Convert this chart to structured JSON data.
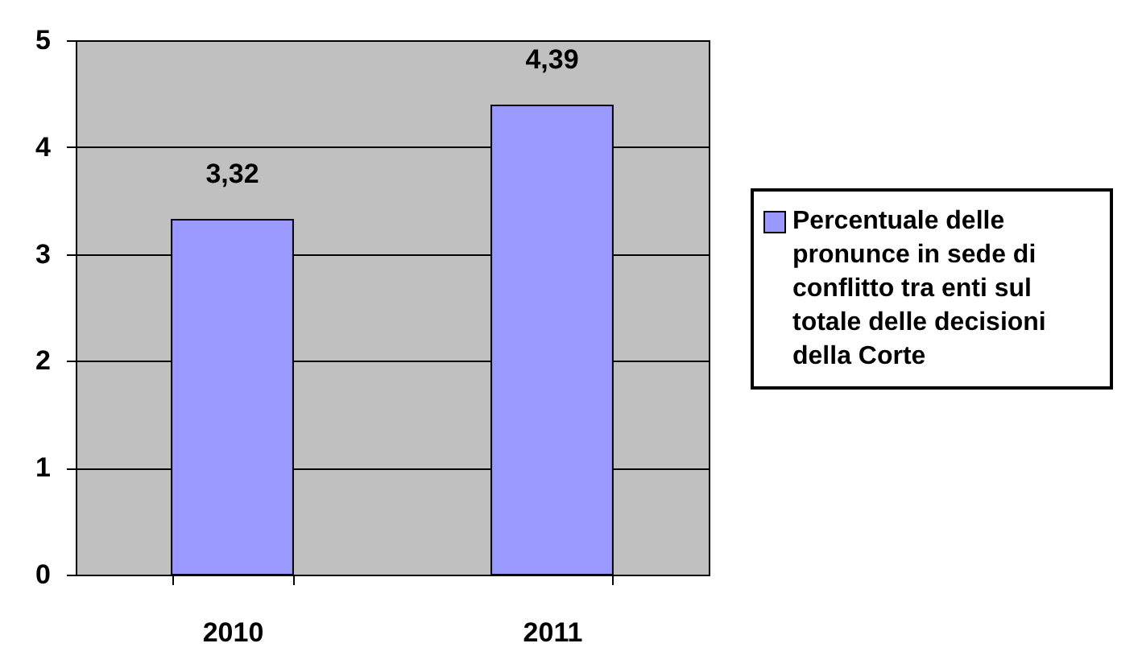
{
  "chart_data": {
    "type": "bar",
    "categories": [
      "2010",
      "2011"
    ],
    "series": [
      {
        "name": "Percentuale delle pronunce in sede di conflitto tra enti sul totale delle decisioni della Corte",
        "color": "#9999ff",
        "values": [
          3.32,
          4.39
        ],
        "value_labels": [
          "3,32",
          "4,39"
        ]
      }
    ],
    "ylim": [
      0,
      5
    ],
    "yticks": [
      0,
      1,
      2,
      3,
      4,
      5
    ],
    "grid": "y",
    "legend": "right"
  }
}
